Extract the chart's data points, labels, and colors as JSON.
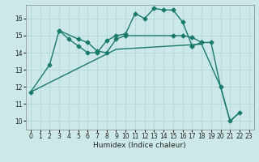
{
  "xlabel": "Humidex (Indice chaleur)",
  "bg_color": "#cce8e8",
  "line_color": "#1a7a6e",
  "marker": "D",
  "marker_size": 2.5,
  "linewidth": 1.0,
  "xlim": [
    -0.5,
    23.5
  ],
  "ylim": [
    9.5,
    16.8
  ],
  "yticks": [
    10,
    11,
    12,
    13,
    14,
    15,
    16
  ],
  "xticks": [
    0,
    1,
    2,
    3,
    4,
    5,
    6,
    7,
    8,
    9,
    10,
    11,
    12,
    13,
    14,
    15,
    16,
    17,
    18,
    19,
    20,
    21,
    22,
    23
  ],
  "series": [
    {
      "x": [
        0,
        2,
        3,
        4,
        5,
        6,
        7,
        8,
        9,
        10,
        11,
        12,
        13,
        14,
        15,
        16,
        17
      ],
      "y": [
        11.7,
        13.3,
        15.3,
        14.8,
        14.4,
        14.0,
        14.0,
        14.7,
        15.0,
        15.1,
        16.3,
        16.0,
        16.6,
        16.5,
        16.5,
        15.8,
        14.4
      ],
      "has_markers": true
    },
    {
      "x": [
        3,
        5,
        6,
        7,
        8,
        9,
        10,
        15,
        16,
        17,
        18
      ],
      "y": [
        15.3,
        14.8,
        14.6,
        14.1,
        14.0,
        14.8,
        15.0,
        15.0,
        15.0,
        14.9,
        14.6
      ],
      "has_markers": true
    },
    {
      "x": [
        17,
        18,
        19,
        20,
        21,
        22
      ],
      "y": [
        14.4,
        14.6,
        14.6,
        12.0,
        10.0,
        10.5
      ],
      "has_markers": true
    },
    {
      "x": [
        0,
        9,
        18,
        20,
        21,
        22
      ],
      "y": [
        11.7,
        14.2,
        14.5,
        12.0,
        10.0,
        10.5
      ],
      "has_markers": false
    }
  ]
}
